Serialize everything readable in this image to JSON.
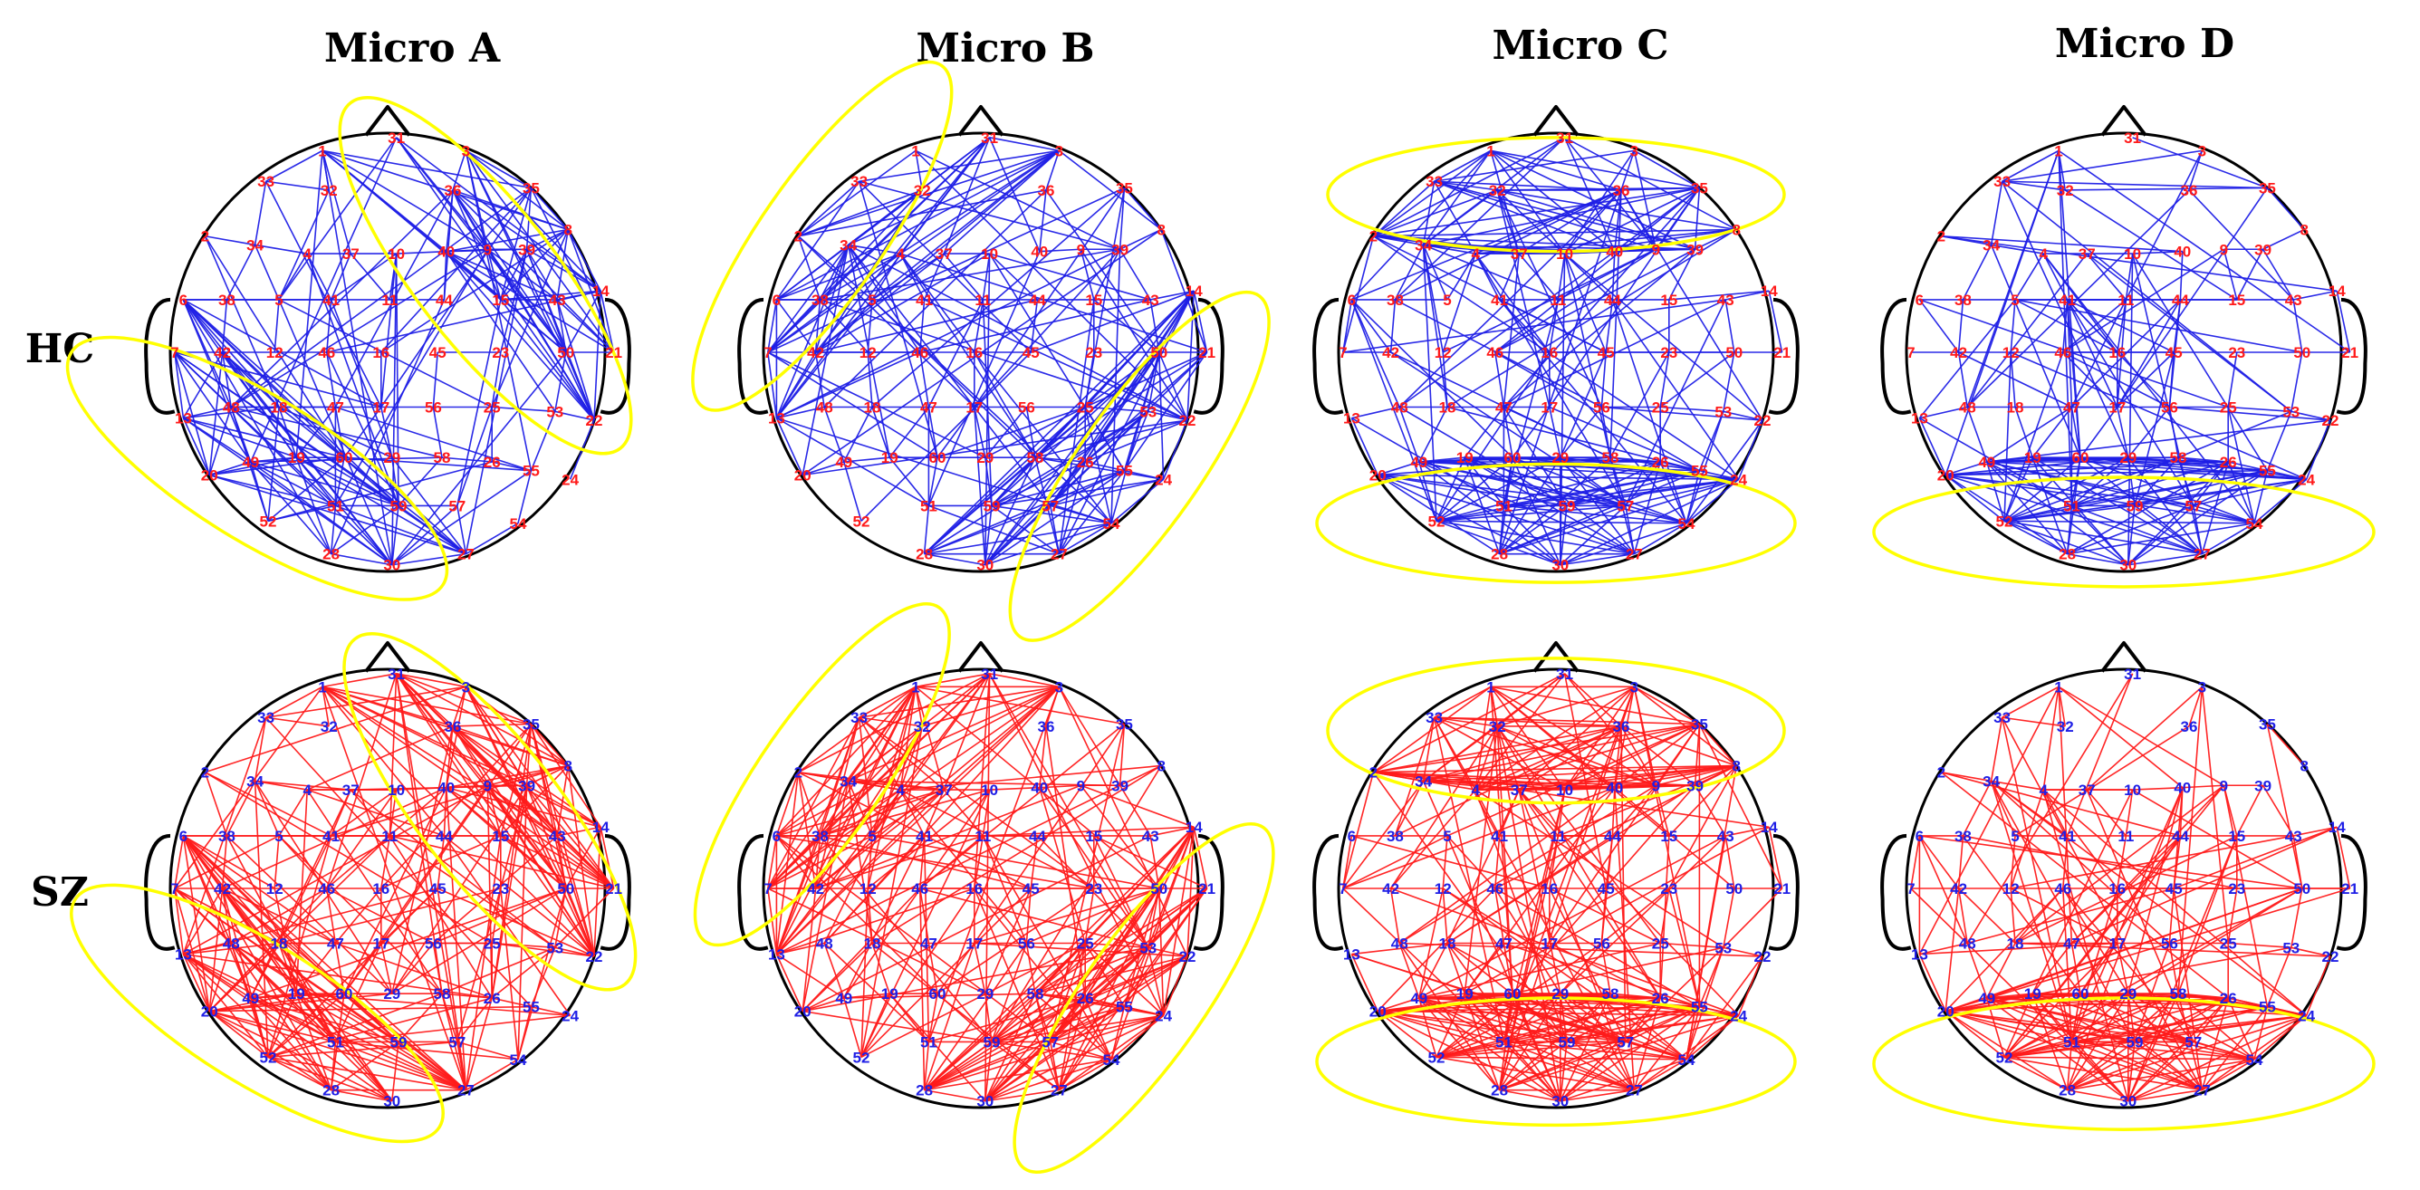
{
  "columns": [
    "Micro A",
    "Micro B",
    "Micro C",
    "Micro D"
  ],
  "rows": [
    {
      "label": "HC",
      "line_color": "#1f1fe6",
      "label_color": "#ff1a1a"
    },
    {
      "label": "SZ",
      "line_color": "#ff1a1a",
      "label_color": "#1f1fe6"
    }
  ],
  "colors": {
    "highlight": "#ffff00",
    "outline": "#000000"
  },
  "electrodes": [
    {
      "id": "1"
    },
    {
      "id": "31"
    },
    {
      "id": "3"
    },
    {
      "id": "33"
    },
    {
      "id": "32"
    },
    {
      "id": "36"
    },
    {
      "id": "35"
    },
    {
      "id": "2"
    },
    {
      "id": "34"
    },
    {
      "id": "4"
    },
    {
      "id": "37"
    },
    {
      "id": "10"
    },
    {
      "id": "40"
    },
    {
      "id": "9"
    },
    {
      "id": "39"
    },
    {
      "id": "8"
    },
    {
      "id": "6"
    },
    {
      "id": "38"
    },
    {
      "id": "5"
    },
    {
      "id": "41"
    },
    {
      "id": "11"
    },
    {
      "id": "44"
    },
    {
      "id": "15"
    },
    {
      "id": "43"
    },
    {
      "id": "14"
    },
    {
      "id": "7"
    },
    {
      "id": "42"
    },
    {
      "id": "12"
    },
    {
      "id": "46"
    },
    {
      "id": "16"
    },
    {
      "id": "45"
    },
    {
      "id": "23"
    },
    {
      "id": "50"
    },
    {
      "id": "21"
    },
    {
      "id": "13"
    },
    {
      "id": "48"
    },
    {
      "id": "18"
    },
    {
      "id": "47"
    },
    {
      "id": "17"
    },
    {
      "id": "56"
    },
    {
      "id": "25"
    },
    {
      "id": "53"
    },
    {
      "id": "22"
    },
    {
      "id": "20"
    },
    {
      "id": "49"
    },
    {
      "id": "19"
    },
    {
      "id": "60"
    },
    {
      "id": "29"
    },
    {
      "id": "58"
    },
    {
      "id": "26"
    },
    {
      "id": "55"
    },
    {
      "id": "24"
    },
    {
      "id": "52"
    },
    {
      "id": "51"
    },
    {
      "id": "59"
    },
    {
      "id": "57"
    },
    {
      "id": "54"
    },
    {
      "id": "28"
    },
    {
      "id": "30"
    },
    {
      "id": "27"
    }
  ]
}
